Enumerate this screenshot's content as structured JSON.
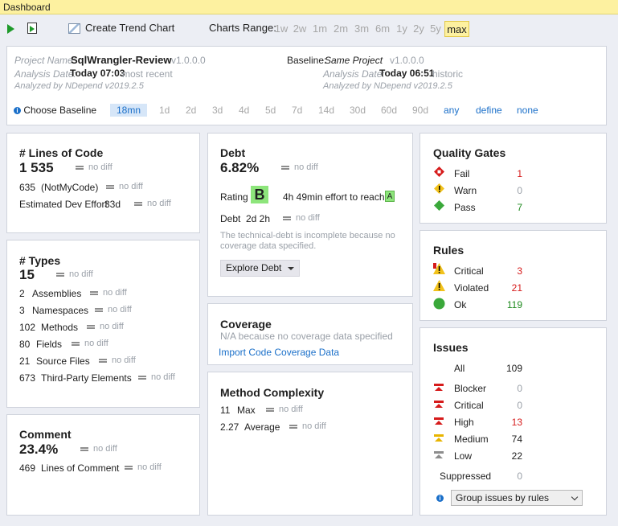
{
  "window_title": "Dashboard",
  "toolbar": {
    "create_trend_chart": "Create Trend Chart",
    "charts_range_label": "Charts Range:",
    "ranges": [
      "1w",
      "2w",
      "1m",
      "2m",
      "3m",
      "6m",
      "1y",
      "2y",
      "5y",
      "max"
    ],
    "selected_range": "max"
  },
  "header": {
    "project_name_label": "Project Name:",
    "project_name": "SqlWrangler-Review",
    "project_version": "v1.0.0.0",
    "analysis_date_label": "Analysis Date:",
    "analysis_date": "Today 07:03",
    "analysis_date_note": "most recent",
    "analyzed_by": "Analyzed by NDepend v2019.2.5",
    "baseline_label": "Baseline:",
    "baseline_name": "Same Project",
    "baseline_version": "v1.0.0.0",
    "baseline_date_label": "Analysis Date:",
    "baseline_date": "Today 06:51",
    "baseline_date_note": "historic",
    "baseline_analyzed_by": "Analyzed by NDepend v2019.2.5",
    "choose_baseline": "Choose Baseline",
    "baseline_options": [
      "18mn",
      "1d",
      "2d",
      "3d",
      "4d",
      "5d",
      "7d",
      "14d",
      "30d",
      "60d",
      "90d"
    ],
    "baseline_links": [
      "any",
      "define",
      "none"
    ]
  },
  "no_diff": "no diff",
  "loc": {
    "title": "# Lines of Code",
    "value": "1 535",
    "notmycode_value": "635",
    "notmycode_label": "(NotMyCode)",
    "effort_label": "Estimated Dev Effort",
    "effort_value": "33d"
  },
  "types": {
    "title": "# Types",
    "value": "15",
    "rows": [
      {
        "value": "2",
        "label": "Assemblies"
      },
      {
        "value": "3",
        "label": "Namespaces"
      },
      {
        "value": "102",
        "label": "Methods"
      },
      {
        "value": "80",
        "label": "Fields"
      },
      {
        "value": "21",
        "label": "Source Files"
      },
      {
        "value": "673",
        "label": "Third-Party Elements"
      }
    ]
  },
  "comment": {
    "title": "Comment",
    "value": "23.4%",
    "lines_value": "469",
    "lines_label": "Lines of Comment"
  },
  "debt": {
    "title": "Debt",
    "value": "6.82%",
    "rating_label": "Rating",
    "rating": "B",
    "effort_text": "4h  49min effort to reach",
    "target_rating": "A",
    "debt_label": "Debt",
    "debt_value": "2d  2h",
    "note": "The technical-debt is incomplete because no coverage data specified.",
    "explore_button": "Explore Debt"
  },
  "coverage": {
    "title": "Coverage",
    "note": "N/A because no coverage data specified",
    "import_link": "Import Code Coverage Data"
  },
  "complexity": {
    "title": "Method Complexity",
    "max_value": "11",
    "max_label": "Max",
    "avg_value": "2.27",
    "avg_label": "Average"
  },
  "quality_gates": {
    "title": "Quality Gates",
    "fail_label": "Fail",
    "fail_count": "1",
    "warn_label": "Warn",
    "warn_count": "0",
    "pass_label": "Pass",
    "pass_count": "7"
  },
  "rules": {
    "title": "Rules",
    "critical_label": "Critical",
    "critical_count": "3",
    "violated_label": "Violated",
    "violated_count": "21",
    "ok_label": "Ok",
    "ok_count": "119"
  },
  "issues": {
    "title": "Issues",
    "all_label": "All",
    "all_count": "109",
    "blocker_label": "Blocker",
    "blocker_count": "0",
    "critical_label": "Critical",
    "critical_count": "0",
    "high_label": "High",
    "high_count": "13",
    "medium_label": "Medium",
    "medium_count": "74",
    "low_label": "Low",
    "low_count": "22",
    "suppressed_label": "Suppressed",
    "suppressed_count": "0",
    "group_select": "Group issues by rules"
  },
  "colors": {
    "titlebar": "#fdf1a0",
    "accent_blue": "#1a6fc9",
    "red": "#d61b1b",
    "green": "#1f8a1f",
    "grade_green": "#8de57b"
  }
}
